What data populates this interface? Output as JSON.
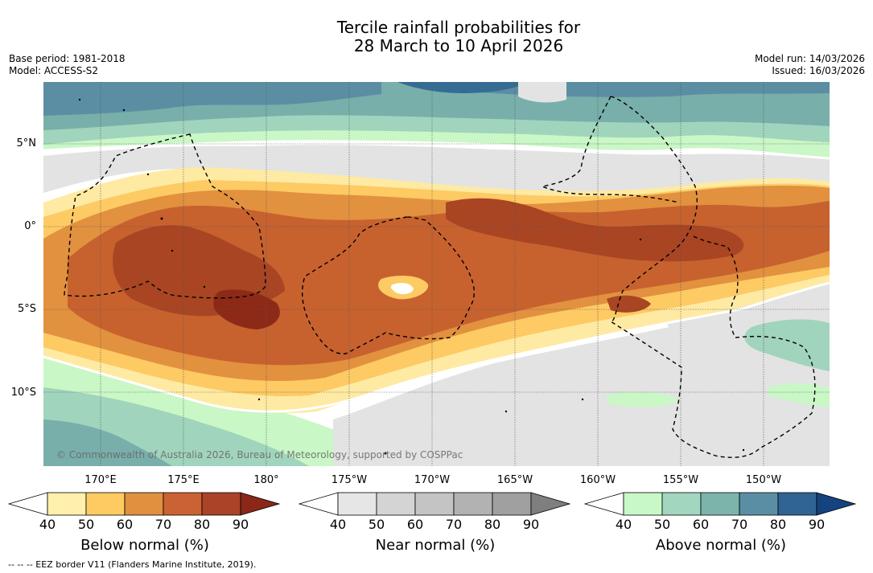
{
  "header": {
    "title_line1": "Tercile rainfall probabilities for",
    "title_line2": "28 March to 10 April 2026",
    "base_period": "Base period: 1981-2018",
    "model": "Model: ACCESS-S2",
    "model_run": "Model run: 14/03/2026",
    "issued": "Issued: 16/03/2026"
  },
  "map": {
    "lat_labels": [
      "5°N",
      "0°",
      "5°S",
      "10°S"
    ],
    "lon_labels": [
      "170°E",
      "175°E",
      "180°",
      "175°W",
      "170°W",
      "165°W",
      "160°W",
      "155°W",
      "150°W"
    ],
    "copyright": "© Commonwealth of Australia 2026, Bureau of Meteorology, supported by COSPPac",
    "colors": {
      "background": "#ffffff",
      "near_normal_40": "#e3e3e3",
      "below_normal_40": "#feeaa3",
      "below_normal_50": "#fdca64",
      "below_normal_60": "#e2913f",
      "below_normal_70": "#c7622f",
      "below_normal_80": "#a94523",
      "below_normal_90": "#8c2a17",
      "above_normal_40": "#c9f7c6",
      "above_normal_50": "#a1d4bc",
      "above_normal_60": "#78afaa",
      "above_normal_70": "#5b8ea2",
      "above_normal_80": "#366c93"
    }
  },
  "colorbars": [
    {
      "label": "Below normal (%)",
      "ticks": [
        "40",
        "50",
        "60",
        "70",
        "80",
        "90"
      ],
      "colors": [
        "#fff0ad",
        "#fecb63",
        "#e0903f",
        "#cb6233",
        "#ab4426",
        "#8a2718"
      ]
    },
    {
      "label": "Near normal (%)",
      "ticks": [
        "40",
        "50",
        "60",
        "70",
        "80",
        "90"
      ],
      "colors": [
        "#e6e6e6",
        "#d4d4d4",
        "#c4c4c4",
        "#b2b2b2",
        "#a0a0a0",
        "#7f7f7f"
      ]
    },
    {
      "label": "Above normal (%)",
      "ticks": [
        "40",
        "50",
        "60",
        "70",
        "80",
        "90"
      ],
      "colors": [
        "#c8f8c8",
        "#a2d6be",
        "#7cb4ac",
        "#5a8ea4",
        "#2f6495",
        "#14437f"
      ]
    }
  ],
  "footer": {
    "eez_note": "--  --  -- EEZ border V11 (Flanders Marine Institute, 2019)."
  }
}
